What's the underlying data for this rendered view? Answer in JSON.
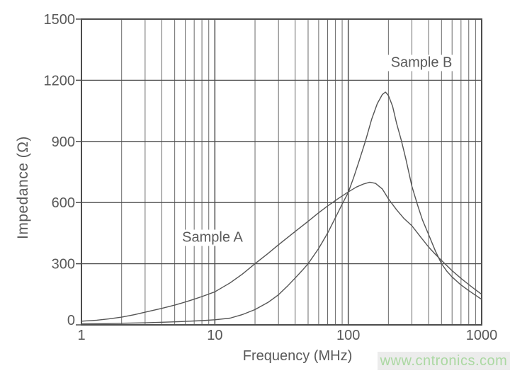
{
  "page": {
    "background": "#ffffff",
    "watermark": {
      "text": "www.cntronics.com",
      "color": "#abd8a2",
      "background": "#ececec"
    }
  },
  "chart_data": {
    "type": "line",
    "title": "",
    "xlabel": "Frequency (MHz)",
    "ylabel": "Impedance (Ω)",
    "x_scale": "log",
    "x_range": [
      1,
      1000
    ],
    "y_range": [
      0,
      1500
    ],
    "x_ticks": [
      1,
      10,
      100,
      1000
    ],
    "y_ticks": [
      0,
      300,
      600,
      900,
      1200,
      1500
    ],
    "grid": "log-minor-verticals-and-major-horizontals",
    "legend": "inline-annotations",
    "colors": {
      "curve": "#555555",
      "grid_minor": "#6a6a6a",
      "grid_major": "#4d4d4d",
      "text": "#595959"
    },
    "series": [
      {
        "name": "Sample A",
        "points": [
          [
            1,
            18
          ],
          [
            1.3,
            23
          ],
          [
            1.6,
            29
          ],
          [
            2,
            38
          ],
          [
            2.5,
            50
          ],
          [
            3,
            62
          ],
          [
            4,
            81
          ],
          [
            5,
            97
          ],
          [
            6,
            112
          ],
          [
            7,
            126
          ],
          [
            8,
            139
          ],
          [
            9,
            151
          ],
          [
            10,
            162
          ],
          [
            13,
            206
          ],
          [
            16,
            248
          ],
          [
            20,
            300
          ],
          [
            25,
            350
          ],
          [
            30,
            393
          ],
          [
            40,
            458
          ],
          [
            50,
            508
          ],
          [
            60,
            550
          ],
          [
            70,
            583
          ],
          [
            85,
            622
          ],
          [
            100,
            652
          ],
          [
            115,
            676
          ],
          [
            130,
            691
          ],
          [
            145,
            700
          ],
          [
            160,
            694
          ],
          [
            180,
            667
          ],
          [
            200,
            618
          ],
          [
            230,
            565
          ],
          [
            260,
            524
          ],
          [
            300,
            486
          ],
          [
            350,
            430
          ],
          [
            400,
            382
          ],
          [
            450,
            346
          ],
          [
            500,
            316
          ],
          [
            600,
            266
          ],
          [
            700,
            228
          ],
          [
            800,
            198
          ],
          [
            900,
            172
          ],
          [
            1000,
            150
          ]
        ]
      },
      {
        "name": "Sample B",
        "points": [
          [
            1,
            5
          ],
          [
            1.5,
            6
          ],
          [
            2,
            8
          ],
          [
            3,
            10
          ],
          [
            4,
            13
          ],
          [
            5,
            15
          ],
          [
            6,
            17
          ],
          [
            7,
            19
          ],
          [
            8,
            21
          ],
          [
            10,
            25
          ],
          [
            13,
            33
          ],
          [
            16,
            50
          ],
          [
            20,
            75
          ],
          [
            25,
            110
          ],
          [
            30,
            148
          ],
          [
            35,
            190
          ],
          [
            40,
            230
          ],
          [
            45,
            266
          ],
          [
            50,
            300
          ],
          [
            60,
            375
          ],
          [
            70,
            450
          ],
          [
            80,
            525
          ],
          [
            90,
            592
          ],
          [
            100,
            650
          ],
          [
            110,
            725
          ],
          [
            120,
            800
          ],
          [
            135,
            905
          ],
          [
            150,
            1010
          ],
          [
            165,
            1085
          ],
          [
            180,
            1130
          ],
          [
            190,
            1142
          ],
          [
            200,
            1125
          ],
          [
            215,
            1072
          ],
          [
            230,
            990
          ],
          [
            250,
            905
          ],
          [
            270,
            815
          ],
          [
            300,
            680
          ],
          [
            330,
            590
          ],
          [
            360,
            515
          ],
          [
            400,
            443
          ],
          [
            450,
            362
          ],
          [
            500,
            300
          ],
          [
            550,
            262
          ],
          [
            600,
            235
          ],
          [
            700,
            196
          ],
          [
            800,
            168
          ],
          [
            900,
            145
          ],
          [
            1000,
            125
          ]
        ]
      }
    ],
    "annotations": [
      {
        "text": "Sample A",
        "f": 9.6,
        "z": 427
      },
      {
        "text": "Sample B",
        "f": 354,
        "z": 1285
      }
    ]
  }
}
